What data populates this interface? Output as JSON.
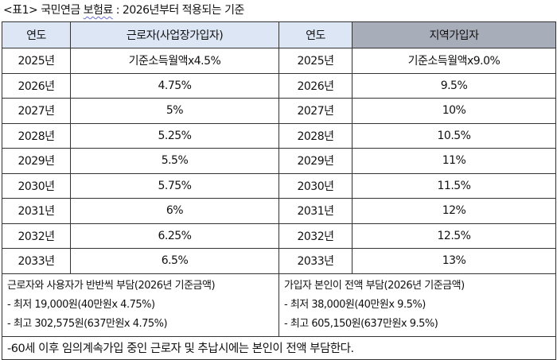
{
  "title": {
    "prefix": "<표1> 국민연금 ",
    "underlined": "보험료",
    "suffix": " : 2026년부터 적용되는 기준"
  },
  "headers": [
    "연도",
    "근로자(사업장가입자)",
    "연도",
    "지역가입자"
  ],
  "rows": [
    [
      "2025년",
      "기준소득월액x4.5%",
      "2025년",
      "기준소득월액x9.0%"
    ],
    [
      "2026년",
      "4.75%",
      "2026년",
      "9.5%"
    ],
    [
      "2027년",
      "5%",
      "2027년",
      "10%"
    ],
    [
      "2028년",
      "5.25%",
      "2028년",
      "10.5%"
    ],
    [
      "2029년",
      "5.5%",
      "2029년",
      "11%"
    ],
    [
      "2030년",
      "5.75%",
      "2030년",
      "11.5%"
    ],
    [
      "2031년",
      "6%",
      "2031년",
      "12%"
    ],
    [
      "2032년",
      "6.25%",
      "2032년",
      "12.5%"
    ],
    [
      "2033년",
      "6.5%",
      "2033년",
      "13%"
    ]
  ],
  "notes": {
    "left": [
      "근로자와 사용자가 반반씩 부담(2026년 기준금액)",
      "- 최저 19,000원(40만원x 4.75%)",
      "- 최고 302,575원(637만원x 4.75%)"
    ],
    "right": [
      "가입자 본인이 전액 부담(2026년 기준금액)",
      "- 최저 38,000원(40만원x 9.5%)",
      "- 최고 605,150원(637만원x 9.5%)"
    ]
  },
  "footnote": "-60세 이후 임의계속가입 중인 근로자 및 추납시에는 본인이 전액 부담한다."
}
